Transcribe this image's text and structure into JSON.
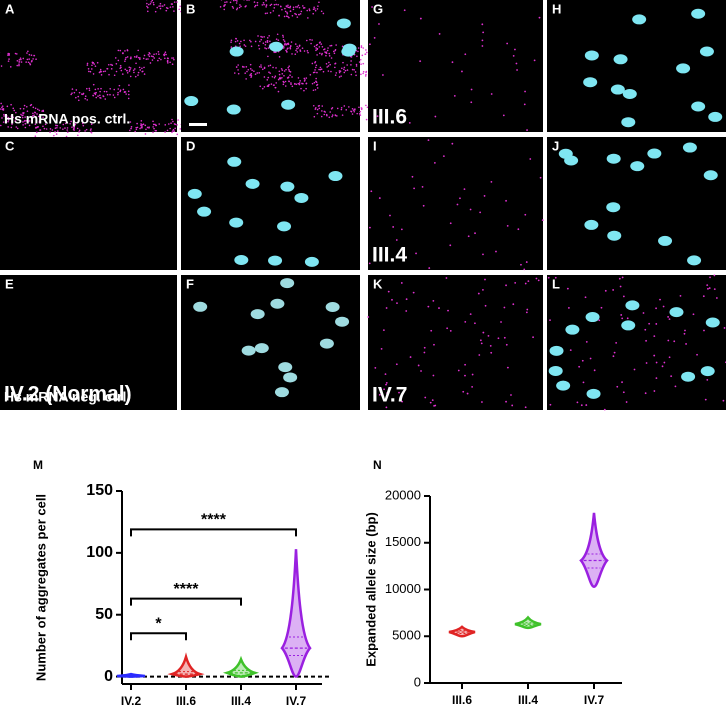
{
  "panels": [
    {
      "letter": "A",
      "label": "Hs mRNA pos. ctrl."
    },
    {
      "letter": "B"
    },
    {
      "letter": "C"
    },
    {
      "letter": "D"
    },
    {
      "letter": "E",
      "label": "Hs mRNA neg. ctrl."
    },
    {
      "letter": "F"
    },
    {
      "letter": "G",
      "label": "III.6"
    },
    {
      "letter": "H"
    },
    {
      "letter": "I",
      "label": "III.4"
    },
    {
      "letter": "J"
    },
    {
      "letter": "K",
      "label": "IV.7"
    },
    {
      "letter": "L"
    }
  ],
  "normal_label": "IV.2 (Normal)",
  "chart_data": [
    {
      "type": "violin",
      "panel": "M",
      "y_label": "Number of aggregates per cell",
      "categories": [
        "IV.2",
        "III.6",
        "III.4",
        "IV.7"
      ],
      "colors": [
        "#2b2bff",
        "#e02424",
        "#3fc22a",
        "#9a20e0"
      ],
      "min": [
        0,
        0,
        0,
        0
      ],
      "q1": [
        0.2,
        0.5,
        1,
        17
      ],
      "median": [
        0.5,
        2,
        3,
        23
      ],
      "q3": [
        1,
        4,
        5,
        32
      ],
      "max": [
        2,
        16,
        14,
        103
      ],
      "ylim": [
        -6,
        150
      ],
      "yticks": [
        0,
        50,
        100,
        150
      ],
      "zero_line": true,
      "annotations": [
        {
          "label": "*",
          "from": 0,
          "to": 1,
          "y": 35
        },
        {
          "label": "****",
          "from": 0,
          "to": 2,
          "y": 63
        },
        {
          "label": "****",
          "from": 0,
          "to": 3,
          "y": 119
        }
      ]
    },
    {
      "type": "violin",
      "panel": "N",
      "y_label": "Expanded allele size (bp)",
      "categories": [
        "III.6",
        "III.4",
        "IV.7"
      ],
      "colors": [
        "#e02424",
        "#3fc22a",
        "#9a20e0"
      ],
      "min": [
        5000,
        5900,
        10300
      ],
      "q1": [
        5300,
        6150,
        12300
      ],
      "median": [
        5450,
        6300,
        13100
      ],
      "q3": [
        5600,
        6450,
        13800
      ],
      "max": [
        6000,
        7000,
        18200
      ],
      "ylim": [
        0,
        20000
      ],
      "yticks": [
        0,
        5000,
        10000,
        15000,
        20000
      ]
    }
  ]
}
